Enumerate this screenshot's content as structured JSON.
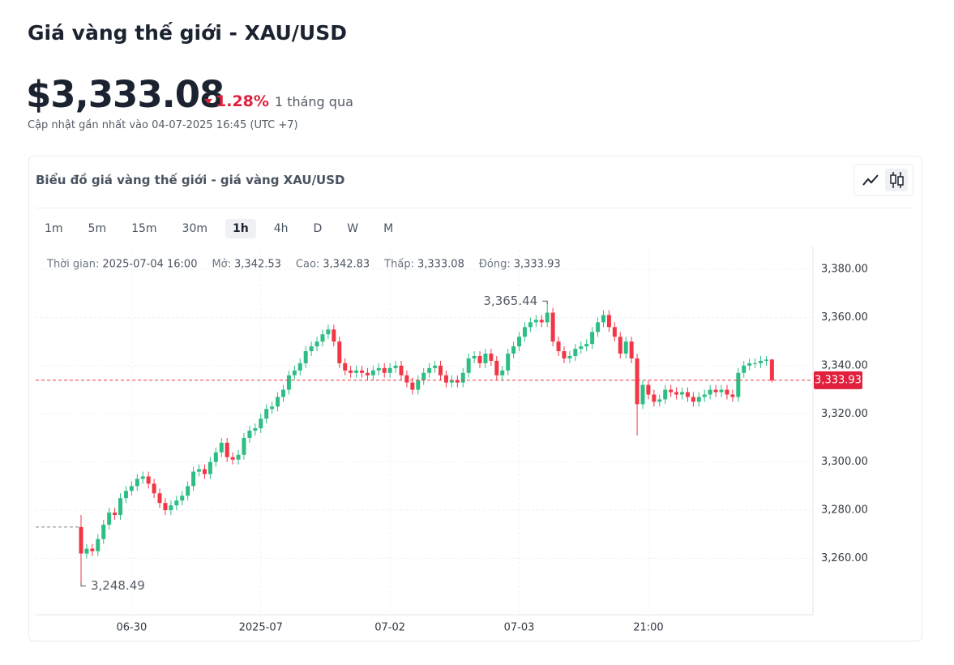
{
  "header": {
    "title": "Giá vàng thế giới - XAU/USD",
    "price": "$3,333.08",
    "change": "1.28%",
    "period": "1 tháng qua",
    "updated": "Cập nhật gần nhất vào 04-07-2025 16:45 (UTC +7)"
  },
  "card": {
    "title": "Biểu đồ giá vàng thế giới - giá vàng XAU/USD",
    "intervals": [
      "1m",
      "5m",
      "15m",
      "30m",
      "1h",
      "4h",
      "D",
      "W",
      "M"
    ],
    "active_interval": 4
  },
  "chart_data": {
    "type": "candlestick",
    "tooltip": [
      {
        "label": "Thời gian:",
        "value": "2025-07-04 16:00"
      },
      {
        "label": "Mở:",
        "value": "3,342.53"
      },
      {
        "label": "Cao:",
        "value": "3,342.83"
      },
      {
        "label": "Thấp:",
        "value": "3,333.08"
      },
      {
        "label": "Đóng:",
        "value": "3,333.93"
      }
    ],
    "annotations": [
      "3,365.44",
      "3,248.49",
      "3,333.93"
    ],
    "colors": {
      "up": "#2ebd85",
      "down": "#f23645"
    },
    "grid": true,
    "ylim": [
      3236.6,
      3388.1
    ],
    "yticks": [
      {
        "value": 3260,
        "label": "3,260.00"
      },
      {
        "value": 3280,
        "label": "3,280.00"
      },
      {
        "value": 3300,
        "label": "3,300.00"
      },
      {
        "value": 3320,
        "label": "3,320.00"
      },
      {
        "value": 3340,
        "label": "3,340.00"
      },
      {
        "value": 3360,
        "label": "3,360.00"
      },
      {
        "value": 3380,
        "label": "3,380.00"
      }
    ],
    "categories": [
      null,
      null,
      null,
      null,
      null,
      null,
      null,
      null,
      null,
      "06-30",
      null,
      null,
      null,
      null,
      null,
      null,
      null,
      null,
      null,
      null,
      null,
      null,
      null,
      null,
      null,
      null,
      null,
      null,
      null,
      null,
      null,
      null,
      "2025-07",
      null,
      null,
      null,
      null,
      null,
      null,
      null,
      null,
      null,
      null,
      null,
      null,
      null,
      null,
      null,
      null,
      null,
      null,
      null,
      null,
      null,
      null,
      "07-02",
      null,
      null,
      null,
      null,
      null,
      null,
      null,
      null,
      null,
      null,
      null,
      null,
      null,
      null,
      null,
      null,
      null,
      null,
      null,
      null,
      null,
      null,
      "07-03",
      null,
      null,
      null,
      null,
      null,
      null,
      null,
      null,
      null,
      null,
      null,
      null,
      null,
      null,
      null,
      null,
      null,
      null,
      null,
      null,
      null,
      null,
      "21:00",
      null,
      null,
      null,
      null,
      null,
      null,
      null,
      null,
      null,
      null,
      null,
      null,
      null,
      null,
      null,
      null,
      null,
      null,
      null,
      null,
      null,
      null
    ],
    "open": [
      3273,
      3262,
      3264,
      3263,
      3268,
      3274,
      3279,
      3278,
      3285,
      3288,
      3290,
      3293,
      3294,
      3291,
      3287,
      3283,
      3280,
      3282,
      3284,
      3286,
      3290,
      3296,
      3297,
      3295,
      3300,
      3304,
      3308,
      3302,
      3301,
      3303,
      3310,
      3313,
      3314,
      3318,
      3322,
      3323,
      3327,
      3330,
      3336,
      3338,
      3341,
      3346,
      3348,
      3350,
      3353,
      3355,
      3350,
      3341,
      3338,
      3337,
      3338,
      3337,
      3336,
      3338,
      3339,
      3337,
      3339,
      3340,
      3336,
      3333,
      3330,
      3334,
      3337,
      3339,
      3340,
      3336,
      3333,
      3334,
      3333,
      3337,
      3343,
      3344,
      3341,
      3345,
      3342,
      3336,
      3338,
      3345,
      3348,
      3352,
      3356,
      3358,
      3359,
      3358,
      3362,
      3350,
      3346,
      3343,
      3344,
      3347,
      3348,
      3349,
      3354,
      3358,
      3361,
      3356,
      3352,
      3345,
      3350,
      3343,
      3324,
      3332,
      3328,
      3325,
      3326,
      3330,
      3329,
      3328,
      3329,
      3327,
      3325,
      3327,
      3328,
      3330,
      3329,
      3330,
      3328,
      3327,
      3337,
      3340,
      3341,
      3341,
      3342,
      3342.53
    ],
    "high": [
      3278,
      3266,
      3266,
      3270,
      3276,
      3281,
      3281,
      3287,
      3290,
      3292,
      3295,
      3296,
      3296,
      3293,
      3289,
      3285,
      3284,
      3286,
      3288,
      3292,
      3298,
      3299,
      3299,
      3302,
      3306,
      3310,
      3310,
      3304,
      3305,
      3312,
      3315,
      3316,
      3320,
      3324,
      3325,
      3329,
      3332,
      3338,
      3340,
      3343,
      3348,
      3350,
      3352,
      3355,
      3357,
      3357,
      3352,
      3343,
      3340,
      3340,
      3340,
      3339,
      3340,
      3341,
      3341,
      3341,
      3342,
      3342,
      3338,
      3335,
      3336,
      3339,
      3341,
      3342,
      3342,
      3338,
      3336,
      3336,
      3339,
      3345,
      3346,
      3346,
      3347,
      3347,
      3344,
      3340,
      3347,
      3350,
      3354,
      3358,
      3360,
      3361,
      3361,
      3365.44,
      3364,
      3352,
      3348,
      3346,
      3349,
      3350,
      3351,
      3356,
      3360,
      3363,
      3363,
      3358,
      3354,
      3352,
      3352,
      3345,
      3334,
      3334,
      3330,
      3328,
      3332,
      3332,
      3331,
      3331,
      3331,
      3329,
      3329,
      3330,
      3332,
      3332,
      3332,
      3332,
      3330,
      3339,
      3342,
      3343,
      3343,
      3344,
      3344,
      3342.83
    ],
    "low": [
      3248.49,
      3260,
      3261,
      3261,
      3266,
      3272,
      3276,
      3276,
      3283,
      3286,
      3288,
      3291,
      3289,
      3285,
      3281,
      3278,
      3278,
      3280,
      3282,
      3284,
      3288,
      3294,
      3293,
      3293,
      3298,
      3302,
      3300,
      3299,
      3299,
      3301,
      3308,
      3311,
      3312,
      3316,
      3320,
      3321,
      3325,
      3328,
      3334,
      3336,
      3339,
      3344,
      3346,
      3348,
      3351,
      3348,
      3339,
      3336,
      3335,
      3335,
      3335,
      3334,
      3334,
      3336,
      3335,
      3335,
      3337,
      3334,
      3331,
      3328,
      3328,
      3332,
      3335,
      3337,
      3334,
      3331,
      3331,
      3331,
      3331,
      3335,
      3341,
      3339,
      3339,
      3340,
      3334,
      3334,
      3336,
      3343,
      3346,
      3350,
      3354,
      3356,
      3356,
      3356,
      3348,
      3344,
      3341,
      3341,
      3342,
      3345,
      3346,
      3347,
      3352,
      3356,
      3354,
      3350,
      3343,
      3343,
      3341,
      3311,
      3322,
      3326,
      3323,
      3323,
      3324,
      3327,
      3326,
      3326,
      3325,
      3323,
      3323,
      3325,
      3326,
      3327,
      3327,
      3326,
      3325,
      3325,
      3335,
      3338,
      3339,
      3339,
      3340,
      3333.08
    ],
    "close": [
      3262,
      3264,
      3263,
      3268,
      3274,
      3279,
      3278,
      3285,
      3288,
      3290,
      3293,
      3294,
      3291,
      3287,
      3283,
      3280,
      3282,
      3284,
      3286,
      3290,
      3296,
      3297,
      3295,
      3300,
      3304,
      3308,
      3302,
      3301,
      3303,
      3310,
      3313,
      3314,
      3318,
      3322,
      3323,
      3327,
      3330,
      3336,
      3338,
      3341,
      3346,
      3348,
      3350,
      3353,
      3355,
      3350,
      3341,
      3338,
      3337,
      3338,
      3337,
      3336,
      3338,
      3339,
      3337,
      3339,
      3340,
      3336,
      3333,
      3330,
      3334,
      3337,
      3339,
      3340,
      3336,
      3333,
      3334,
      3333,
      3337,
      3343,
      3344,
      3341,
      3345,
      3342,
      3336,
      3338,
      3345,
      3348,
      3352,
      3356,
      3358,
      3359,
      3358,
      3362,
      3350,
      3346,
      3343,
      3344,
      3347,
      3348,
      3349,
      3354,
      3358,
      3361,
      3356,
      3352,
      3345,
      3350,
      3343,
      3324,
      3332,
      3328,
      3325,
      3326,
      3330,
      3329,
      3328,
      3329,
      3327,
      3325,
      3327,
      3328,
      3330,
      3329,
      3330,
      3328,
      3327,
      3337,
      3340,
      3341,
      3341,
      3342,
      3342.53,
      3333.93
    ]
  }
}
